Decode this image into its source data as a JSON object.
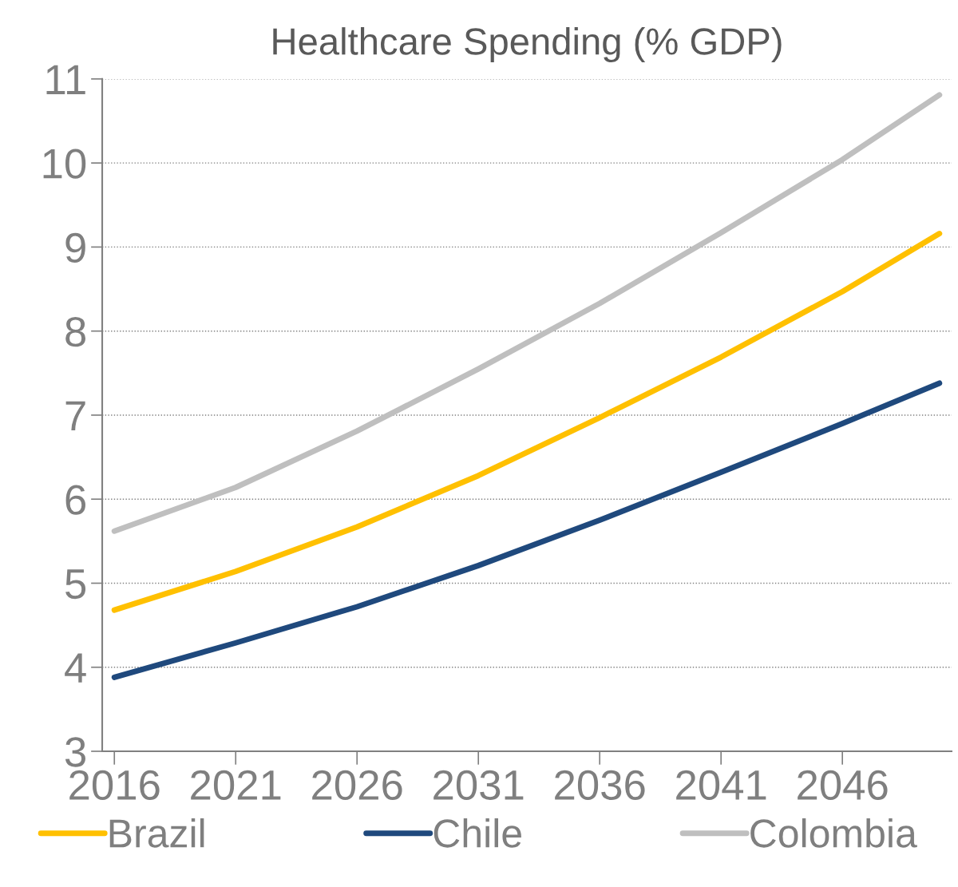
{
  "chart_data": {
    "type": "line",
    "title": "Healthcare Spending (% GDP)",
    "x": [
      2016,
      2021,
      2026,
      2031,
      2036,
      2041,
      2046,
      2050
    ],
    "series": [
      {
        "name": "Brazil",
        "color": "#ffc000",
        "values": [
          4.68,
          5.14,
          5.67,
          6.28,
          6.97,
          7.69,
          8.47,
          9.16
        ]
      },
      {
        "name": "Chile",
        "color": "#1f497d",
        "values": [
          3.88,
          4.29,
          4.72,
          5.21,
          5.75,
          6.32,
          6.9,
          7.38
        ]
      },
      {
        "name": "Colombia",
        "color": "#bfbfbf",
        "values": [
          5.62,
          6.14,
          6.81,
          7.55,
          8.33,
          9.17,
          10.04,
          10.81
        ]
      }
    ],
    "xlim": [
      2015.5,
      2050.5
    ],
    "xticks": [
      2016,
      2021,
      2026,
      2031,
      2036,
      2041,
      2046
    ],
    "ylim": [
      3,
      11
    ],
    "yticks": [
      3,
      4,
      5,
      6,
      7,
      8,
      9,
      10,
      11
    ],
    "grid": "y",
    "legend": "bottom",
    "marker": "none",
    "line_style": "solid"
  }
}
